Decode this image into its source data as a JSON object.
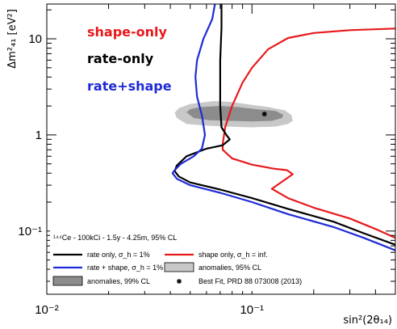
{
  "chart_data": {
    "type": "area",
    "title": "",
    "xlabel": "sin²(2θ₁₄)",
    "ylabel": "Δm²₄₁ [eV²]",
    "x_scale": "log",
    "y_scale": "log",
    "xlim": [
      0.01,
      0.5
    ],
    "ylim": [
      0.022,
      23
    ],
    "x_ticks": [
      {
        "value": 0.01,
        "label": "10⁻²"
      },
      {
        "value": 0.1,
        "label": "10⁻¹"
      }
    ],
    "y_ticks": [
      {
        "value": 0.1,
        "label": "10⁻¹"
      },
      {
        "value": 1,
        "label": "1"
      },
      {
        "value": 10,
        "label": "10"
      }
    ],
    "annotations": {
      "shape_only": {
        "text": "shape-only",
        "color": "#e8191c"
      },
      "rate_only": {
        "text": "rate-only",
        "color": "#000000"
      },
      "rate_shape": {
        "text": "rate+shape",
        "color": "#1f2bd6"
      }
    },
    "legend": {
      "header": "¹⁴⁴Ce - 100kCi - 1.5y - 4.25m, 95% CL",
      "placement": "bottom-left",
      "entries": [
        {
          "label": "rate only, σ_h = 1%",
          "marker": "line",
          "color": "#000000"
        },
        {
          "label": "shape only, σ_h = inf.",
          "marker": "line",
          "color": "#e8191c"
        },
        {
          "label": "rate + shape, σ_h = 1%",
          "marker": "line",
          "color": "#1f2bd6"
        },
        {
          "label": "anomalies, 95% CL",
          "marker": "box",
          "color": "#c8c8c8"
        },
        {
          "label": "anomalies, 99% CL",
          "marker": "box",
          "color": "#8c8c8c"
        },
        {
          "label": "Best Fit, PRD 88 073008 (2013)",
          "marker": "star",
          "color": "#000000"
        }
      ]
    },
    "best_fit": {
      "x": 0.115,
      "y": 1.65
    },
    "series": [
      {
        "name": "shape-only",
        "color": "#e8191c",
        "points": [
          [
            0.5,
            12.8
          ],
          [
            0.3,
            12.3
          ],
          [
            0.2,
            11.5
          ],
          [
            0.15,
            10.2
          ],
          [
            0.12,
            7.8
          ],
          [
            0.1,
            5.0
          ],
          [
            0.09,
            3.5
          ],
          [
            0.08,
            2.0
          ],
          [
            0.074,
            1.2
          ],
          [
            0.072,
            0.8
          ],
          [
            0.072,
            0.7
          ],
          [
            0.08,
            0.57
          ],
          [
            0.1,
            0.49
          ],
          [
            0.128,
            0.445
          ],
          [
            0.148,
            0.43
          ],
          [
            0.158,
            0.39
          ],
          [
            0.14,
            0.325
          ],
          [
            0.125,
            0.275
          ],
          [
            0.15,
            0.22
          ],
          [
            0.2,
            0.175
          ],
          [
            0.3,
            0.135
          ],
          [
            0.4,
            0.105
          ],
          [
            0.5,
            0.085
          ]
        ]
      },
      {
        "name": "rate-only",
        "color": "#000000",
        "points": [
          [
            0.071,
            23
          ],
          [
            0.071,
            13
          ],
          [
            0.07,
            6
          ],
          [
            0.07,
            3
          ],
          [
            0.07,
            2
          ],
          [
            0.071,
            1.2
          ],
          [
            0.075,
            1.0
          ],
          [
            0.078,
            0.9
          ],
          [
            0.072,
            0.78
          ],
          [
            0.06,
            0.72
          ],
          [
            0.048,
            0.6
          ],
          [
            0.043,
            0.48
          ],
          [
            0.042,
            0.42
          ],
          [
            0.044,
            0.37
          ],
          [
            0.05,
            0.32
          ],
          [
            0.07,
            0.27
          ],
          [
            0.1,
            0.22
          ],
          [
            0.15,
            0.17
          ],
          [
            0.25,
            0.125
          ],
          [
            0.35,
            0.095
          ],
          [
            0.5,
            0.072
          ]
        ]
      },
      {
        "name": "rate+shape",
        "color": "#1f2bd6",
        "points": [
          [
            0.066,
            23
          ],
          [
            0.064,
            16
          ],
          [
            0.058,
            10
          ],
          [
            0.054,
            6
          ],
          [
            0.053,
            4
          ],
          [
            0.054,
            2.5
          ],
          [
            0.057,
            1.6
          ],
          [
            0.059,
            1.0
          ],
          [
            0.057,
            0.72
          ],
          [
            0.052,
            0.6
          ],
          [
            0.045,
            0.5
          ],
          [
            0.042,
            0.43
          ],
          [
            0.041,
            0.4
          ],
          [
            0.043,
            0.35
          ],
          [
            0.05,
            0.3
          ],
          [
            0.07,
            0.25
          ],
          [
            0.1,
            0.2
          ],
          [
            0.15,
            0.15
          ],
          [
            0.25,
            0.11
          ],
          [
            0.35,
            0.085
          ],
          [
            0.5,
            0.063
          ]
        ]
      },
      {
        "name": "anomalies-95",
        "color": "#c8c8c8",
        "points": [
          [
            0.042,
            1.7
          ],
          [
            0.043,
            1.5
          ],
          [
            0.048,
            1.3
          ],
          [
            0.06,
            1.25
          ],
          [
            0.075,
            1.22
          ],
          [
            0.1,
            1.2
          ],
          [
            0.13,
            1.22
          ],
          [
            0.15,
            1.3
          ],
          [
            0.158,
            1.4
          ],
          [
            0.156,
            1.6
          ],
          [
            0.145,
            1.8
          ],
          [
            0.12,
            1.95
          ],
          [
            0.1,
            2.05
          ],
          [
            0.08,
            2.2
          ],
          [
            0.065,
            2.25
          ],
          [
            0.05,
            2.1
          ],
          [
            0.044,
            1.9
          ]
        ]
      },
      {
        "name": "anomalies-99",
        "color": "#8c8c8c",
        "points": [
          [
            0.048,
            1.72
          ],
          [
            0.052,
            1.5
          ],
          [
            0.062,
            1.42
          ],
          [
            0.08,
            1.4
          ],
          [
            0.1,
            1.38
          ],
          [
            0.125,
            1.4
          ],
          [
            0.14,
            1.5
          ],
          [
            0.142,
            1.62
          ],
          [
            0.13,
            1.78
          ],
          [
            0.105,
            1.85
          ],
          [
            0.085,
            1.95
          ],
          [
            0.07,
            2.0
          ],
          [
            0.056,
            1.95
          ],
          [
            0.05,
            1.85
          ]
        ]
      }
    ]
  }
}
